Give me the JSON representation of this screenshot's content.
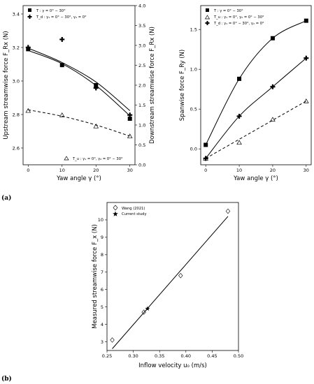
{
  "panel_labels": {
    "a": "(a)",
    "b": "(b)"
  },
  "chart_data": [
    {
      "type": "line",
      "xlabel": "Yaw angle γ (°)",
      "ylabel_left": "Upstream streamwise force F_Rx (N)",
      "ylabel_right": "Downstream streamwise force F_Rx (N)",
      "xlim": [
        -1.5,
        31.5
      ],
      "ylim_left": [
        2.5,
        3.45
      ],
      "ylim_right": [
        0,
        4.0
      ],
      "x_ticks": [
        "0",
        "10",
        "20",
        "30"
      ],
      "yleft_ticks": [
        "2.6",
        "2.8",
        "3.0",
        "3.2",
        "3.4"
      ],
      "yright_ticks": [
        "0.0",
        "0.5",
        "1.0",
        "1.5",
        "2.0",
        "2.5",
        "3.0",
        "3.5",
        "4.0"
      ],
      "legend_upper": [
        "T : γ = 0° ∼ 30°",
        "T_d : γ₁ = 0° ∼ 30°, γ₂ = 0°"
      ],
      "legend_lower": [
        "T_u : γ₁ = 0°, γ₂ = 0° ∼ 30°"
      ],
      "series": [
        {
          "name": "T : γ = 0° ∼ 30°",
          "axis": "left",
          "marker": "square",
          "x": [
            0,
            10,
            20,
            30
          ],
          "y": [
            3.19,
            3.095,
            2.975,
            2.775
          ],
          "fit": [
            3.182,
            3.103,
            2.973,
            2.792
          ]
        },
        {
          "name": "T_d : γ₁ = 0° ∼ 30°, γ₂ = 0°",
          "axis": "right",
          "marker": "plus",
          "x": [
            0,
            10,
            20,
            30
          ],
          "y": [
            2.95,
            3.15,
            1.93,
            1.25
          ],
          "fit": [
            2.93,
            2.57,
            2.08,
            1.36
          ]
        },
        {
          "name": "T_u : γ₁ = 0°, γ₂ = 0° ∼ 30°",
          "axis": "right",
          "marker": "triangle",
          "x": [
            0,
            10,
            20,
            30
          ],
          "y": [
            1.36,
            1.25,
            0.97,
            0.72
          ],
          "fit": [
            1.38,
            1.22,
            1.0,
            0.72
          ]
        }
      ]
    },
    {
      "type": "line",
      "xlabel": "Yaw angle γ (°)",
      "ylabel": "Spanwise force F_Ry (N)",
      "xlim": [
        -1.5,
        31.5
      ],
      "ylim": [
        -0.2,
        1.8
      ],
      "x_ticks": [
        "0",
        "10",
        "20",
        "30"
      ],
      "y_ticks": [
        "0.0",
        "0.5",
        "1.0",
        "1.5"
      ],
      "legend": [
        "T : γ = 0° ∼ 30°",
        "T_u : γ₁ = 0°, γ₂ = 0° ∼ 30°",
        "T_d : γ₁ = 0° ∼ 30°, γ₂ = 0°"
      ],
      "series": [
        {
          "name": "T : γ = 0° ∼ 30°",
          "marker": "square",
          "x": [
            0,
            10,
            20,
            30
          ],
          "y": [
            0.05,
            0.88,
            1.39,
            1.61
          ],
          "fit_style": "solid"
        },
        {
          "name": "T_u : γ₁ = 0°, γ₂ = 0° ∼ 30°",
          "marker": "triangle",
          "x": [
            0,
            10,
            20,
            30
          ],
          "y": [
            -0.12,
            0.08,
            0.37,
            0.6
          ],
          "fit_style": "dashed"
        },
        {
          "name": "T_d : γ₁ = 0° ∼ 30°, γ₂ = 0°",
          "marker": "plus",
          "x": [
            0,
            10,
            20,
            30
          ],
          "y": [
            -0.12,
            0.41,
            0.78,
            1.14
          ],
          "fit_style": "solid"
        }
      ]
    },
    {
      "type": "scatter",
      "xlabel": "Inflow velocity u₀ (m/s)",
      "ylabel": "Measured streamwise force F_x (N)",
      "xlim": [
        0.25,
        0.5
      ],
      "ylim": [
        2.5,
        11.0
      ],
      "x_ticks": [
        "0.25",
        "0.30",
        "0.35",
        "0.40",
        "0.45",
        "0.50"
      ],
      "y_ticks": [
        "3",
        "4",
        "5",
        "6",
        "7",
        "8",
        "9",
        "10"
      ],
      "legend": [
        "Wang (2021)",
        "Current study"
      ],
      "series": [
        {
          "name": "Wang (2021)",
          "marker": "diamond",
          "x": [
            0.26,
            0.32,
            0.39,
            0.48
          ],
          "y": [
            3.1,
            4.7,
            6.8,
            10.5
          ]
        },
        {
          "name": "Current study",
          "marker": "star",
          "x": [
            0.327
          ],
          "y": [
            4.9
          ]
        }
      ],
      "fit_line": {
        "x": [
          0.26,
          0.48
        ],
        "y": [
          2.6,
          10.2
        ]
      }
    }
  ]
}
